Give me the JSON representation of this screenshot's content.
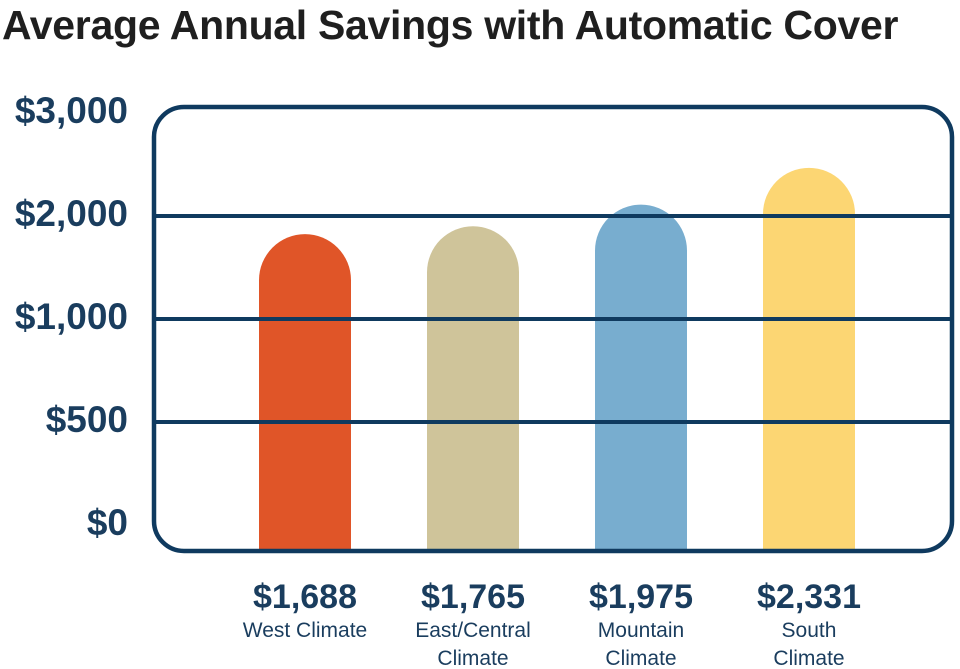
{
  "title": "Average Annual Savings with Automatic Cover",
  "chart_data": {
    "type": "bar",
    "title": "Average Annual Savings with Automatic Cover",
    "xlabel": "",
    "ylabel": "",
    "y_tick_labels": [
      "$3,000",
      "$2,000",
      "$1,000",
      "$500",
      "$0"
    ],
    "categories": [
      "West Climate",
      "East/Central Climate",
      "Mountain Climate",
      "South Climate"
    ],
    "category_lines": [
      [
        "West Climate"
      ],
      [
        "East/Central",
        "Climate"
      ],
      [
        "Mountain",
        "Climate"
      ],
      [
        "South",
        "Climate"
      ]
    ],
    "values": [
      1688,
      1765,
      1975,
      2331
    ],
    "value_labels": [
      "$1,688",
      "$1,765",
      "$1,975",
      "$2,331"
    ],
    "colors": [
      "#e05528",
      "#cfc49a",
      "#78adcf",
      "#fcd673"
    ],
    "grid": true,
    "axis_color": "#0f3a5f"
  }
}
